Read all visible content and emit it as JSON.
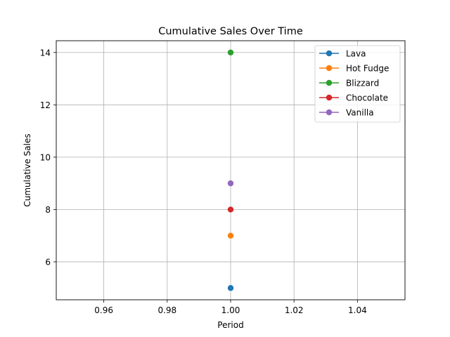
{
  "chart_data": {
    "type": "line",
    "title": "Cumulative Sales Over Time",
    "xlabel": "Period",
    "ylabel": "Cumulative Sales",
    "xlim": [
      0.945,
      1.055
    ],
    "ylim": [
      4.55,
      14.45
    ],
    "xticks": [
      0.96,
      0.98,
      1.0,
      1.02,
      1.04
    ],
    "xtick_labels": [
      "0.96",
      "0.98",
      "1.00",
      "1.02",
      "1.04"
    ],
    "yticks": [
      6,
      8,
      10,
      12,
      14
    ],
    "ytick_labels": [
      "6",
      "8",
      "10",
      "12",
      "14"
    ],
    "grid": true,
    "legend_position": "top-right",
    "x": [
      1.0
    ],
    "series": [
      {
        "name": "Lava",
        "values": [
          5
        ],
        "color": "#1f77b4"
      },
      {
        "name": "Hot Fudge",
        "values": [
          7
        ],
        "color": "#ff7f0e"
      },
      {
        "name": "Blizzard",
        "values": [
          14
        ],
        "color": "#2ca02c"
      },
      {
        "name": "Chocolate",
        "values": [
          8
        ],
        "color": "#d62728"
      },
      {
        "name": "Vanilla",
        "values": [
          9
        ],
        "color": "#9467bd"
      }
    ]
  }
}
